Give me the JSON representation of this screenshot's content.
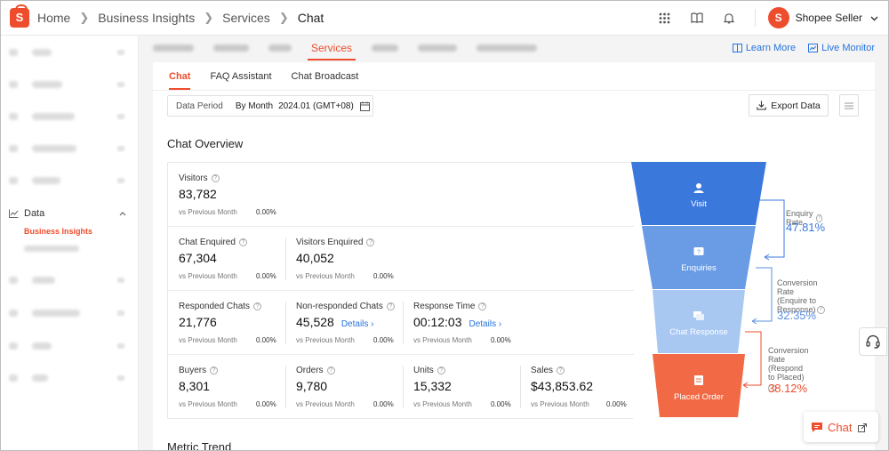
{
  "header": {
    "breadcrumbs": [
      "Home",
      "Business Insights",
      "Services",
      "Chat"
    ],
    "seller_name": "Shopee Seller",
    "avatar_letter": "S",
    "logo_letter": "S"
  },
  "sidebar": {
    "active_section": "Data",
    "active_item": "Business Insights"
  },
  "top_tabs": {
    "active": "Services",
    "links": [
      "Learn More",
      "Live Monitor"
    ]
  },
  "sub_tabs": [
    "Chat",
    "FAQ Assistant",
    "Chat Broadcast"
  ],
  "filters": {
    "period_label": "Data Period",
    "period_mode": "By Month",
    "period_value": "2024.01 (GMT+08)",
    "export_label": "Export Data"
  },
  "overview": {
    "title": "Chat Overview",
    "compare_label": "vs Previous Month",
    "rows": [
      [
        {
          "label": "Visitors",
          "value": "83,782",
          "change": "0.00%"
        }
      ],
      [
        {
          "label": "Chat Enquired",
          "value": "67,304",
          "change": "0.00%"
        },
        {
          "label": "Visitors Enquired",
          "value": "40,052",
          "change": "0.00%"
        }
      ],
      [
        {
          "label": "Responded Chats",
          "value": "21,776",
          "change": "0.00%"
        },
        {
          "label": "Non-responded Chats",
          "value": "45,528",
          "change": "0.00%",
          "details": "Details"
        },
        {
          "label": "Response Time",
          "value": "00:12:03",
          "change": "0.00%",
          "details": "Details"
        }
      ],
      [
        {
          "label": "Buyers",
          "value": "8,301",
          "change": "0.00%"
        },
        {
          "label": "Orders",
          "value": "9,780",
          "change": "0.00%"
        },
        {
          "label": "Units",
          "value": "15,332",
          "change": "0.00%"
        },
        {
          "label": "Sales",
          "value": "$43,853.62",
          "change": "0.00%"
        }
      ]
    ]
  },
  "funnel": {
    "stages": [
      {
        "label": "Visit",
        "icon": "person-icon",
        "color": "#3a78dc"
      },
      {
        "label": "Enquiries",
        "icon": "chat-question-icon",
        "color": "#6a9ce6"
      },
      {
        "label": "Chat Response",
        "icon": "chat-bubbles-icon",
        "color": "#a8c8f2"
      },
      {
        "label": "Placed Order",
        "icon": "clipboard-icon",
        "color": "#f26a45"
      }
    ],
    "rates": [
      {
        "label": "Enquiry Rate",
        "value": "47.81%",
        "color": "#3a78dc"
      },
      {
        "label_lines": [
          "Conversion Rate",
          "(Enquire to",
          "Response)"
        ],
        "value": "32.35%",
        "color": "#5b8fe0"
      },
      {
        "label_lines": [
          "Conversion Rate",
          "(Respond to Placed)"
        ],
        "value": "38.12%",
        "color": "#ee4d2d"
      }
    ]
  },
  "trend_title": "Metric Trend",
  "chat_widget_label": "Chat",
  "colors": {
    "brand": "#ee4d2d",
    "link": "#2673dd"
  }
}
